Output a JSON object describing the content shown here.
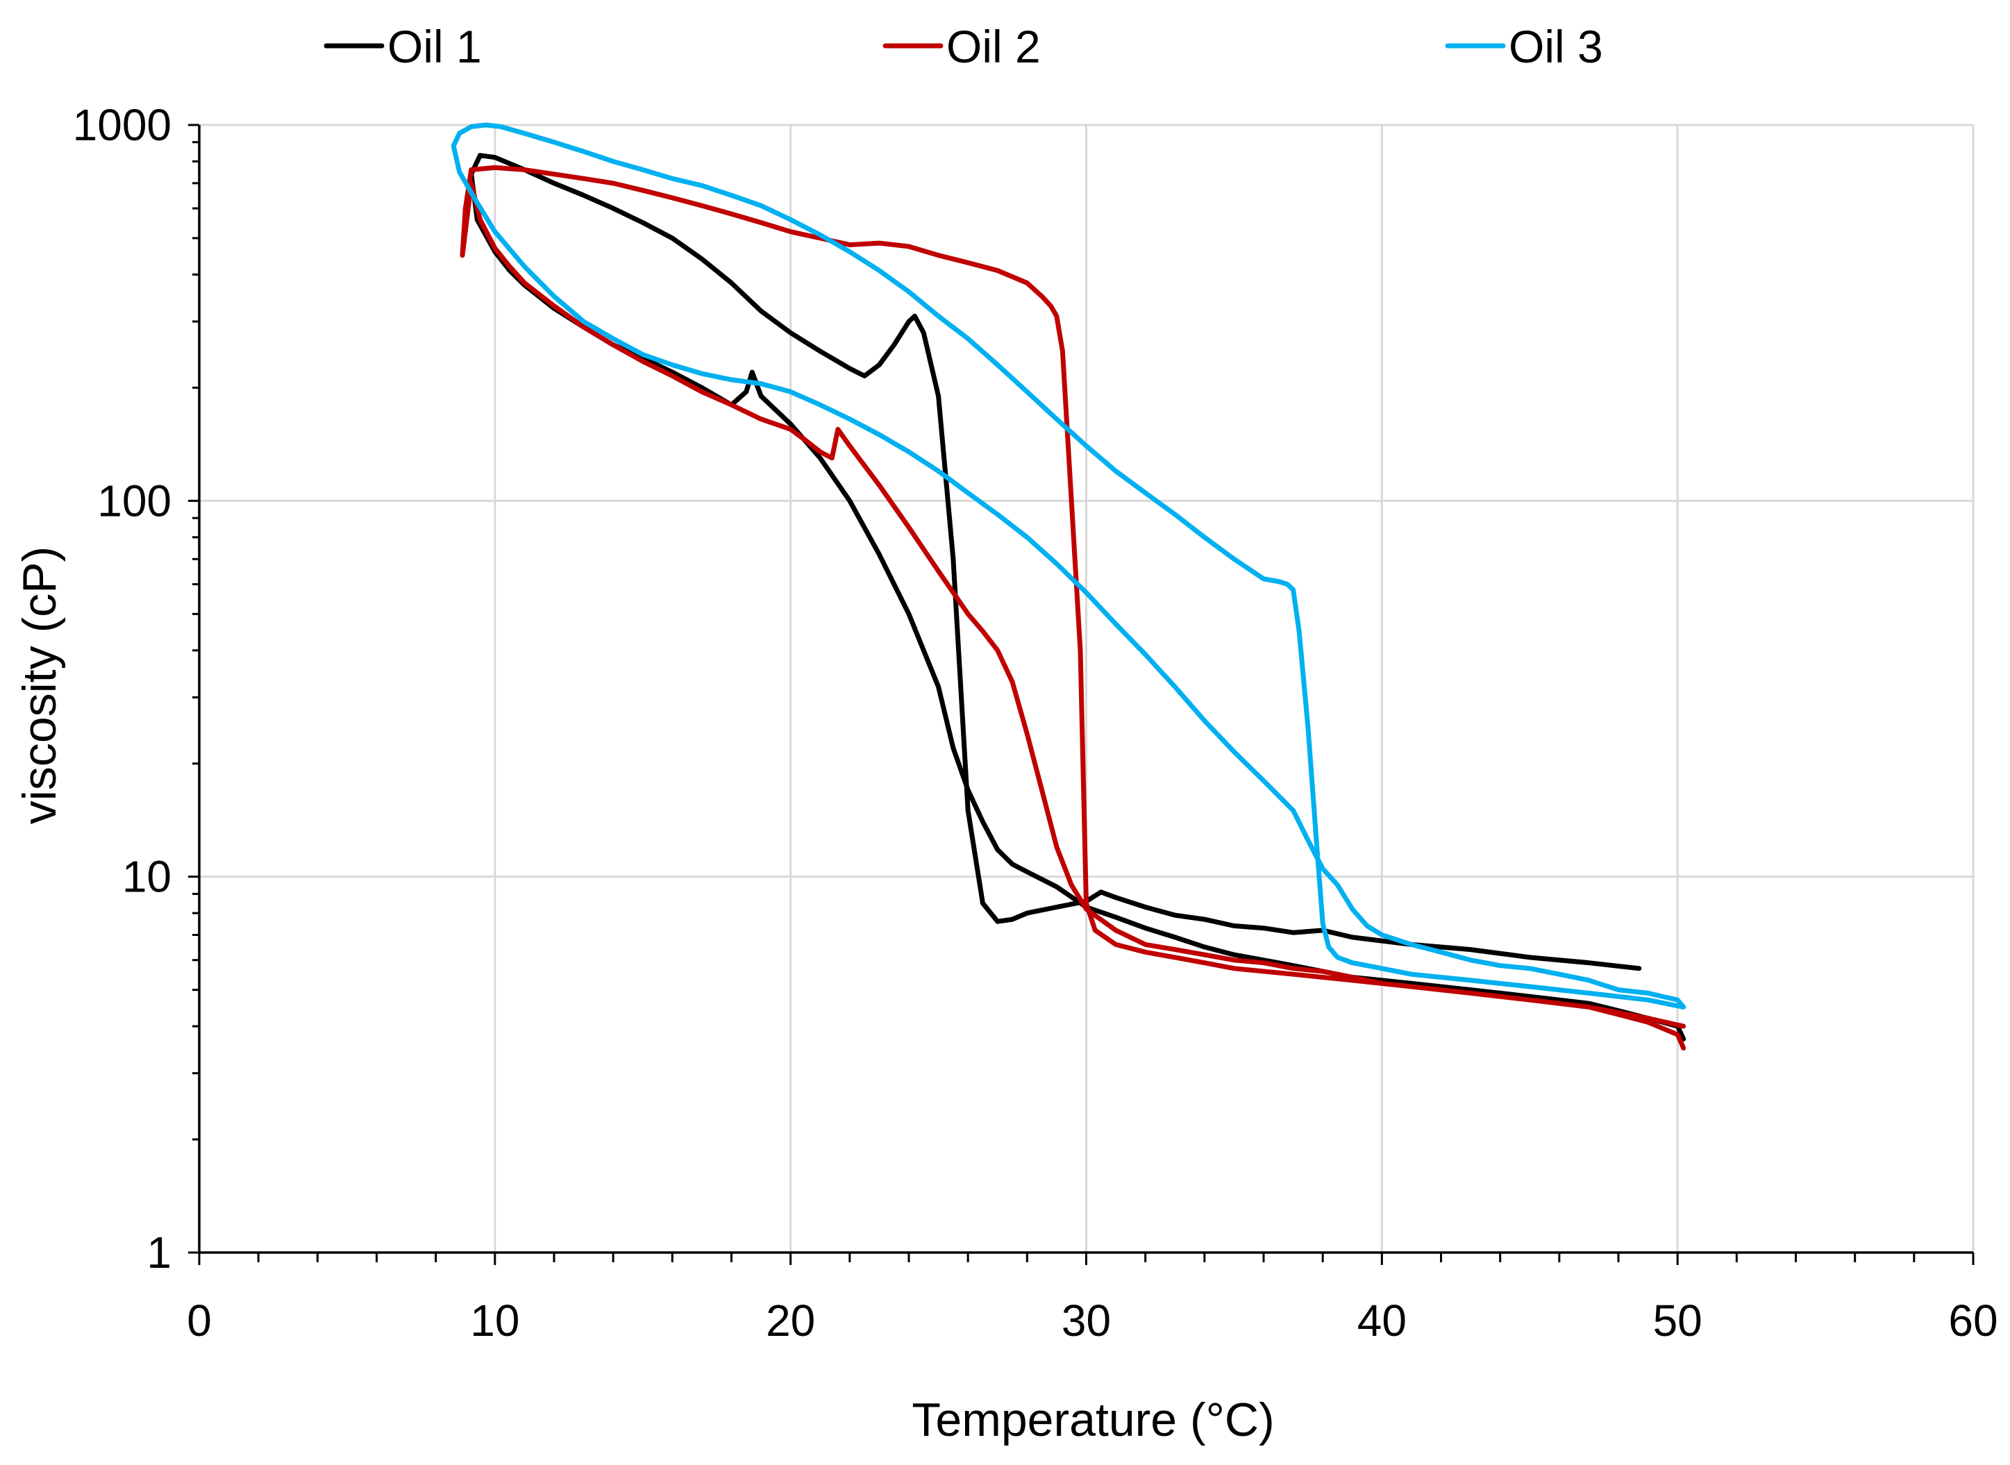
{
  "chart_data": {
    "type": "line",
    "title": "",
    "xlabel": "Temperature (°C)",
    "ylabel": "viscosity (cP)",
    "xlim": [
      0,
      60
    ],
    "ylim": [
      1,
      1000
    ],
    "yscale": "log",
    "x_ticks": [
      0,
      10,
      20,
      30,
      40,
      50,
      60
    ],
    "x_tick_labels": [
      "0",
      "10",
      "20",
      "30",
      "40",
      "50",
      "60"
    ],
    "x_minor_step": 2,
    "y_ticks": [
      1,
      10,
      100,
      1000
    ],
    "y_tick_labels": [
      "1",
      "10",
      "100",
      "1000"
    ],
    "y_minor_ticks": [
      2,
      3,
      4,
      5,
      6,
      7,
      8,
      9,
      20,
      30,
      40,
      50,
      60,
      70,
      80,
      90,
      200,
      300,
      400,
      500,
      600,
      700,
      800,
      900
    ],
    "grid": true,
    "legend_position": "top",
    "series": [
      {
        "name": "Oil 1",
        "color": "#000000",
        "x": [
          48.7,
          47,
          45,
          43,
          41,
          39,
          38,
          37,
          36,
          35,
          34,
          33,
          32,
          31,
          30.5,
          30,
          29,
          28,
          27.5,
          27,
          26.5,
          26,
          25.5,
          25,
          24.5,
          24.2,
          24,
          23.5,
          23,
          22.5,
          22,
          21,
          20,
          19,
          18,
          17,
          16,
          15,
          14,
          13,
          12,
          11,
          10,
          9.5,
          9.2,
          9.4,
          10,
          10.5,
          11,
          12,
          13,
          14,
          15,
          16,
          17,
          18,
          18.5,
          18.7,
          19,
          20,
          21,
          22,
          23,
          24,
          25,
          25.5,
          26,
          26.5,
          27,
          27.5,
          28,
          29,
          30,
          31,
          32,
          33,
          34,
          35,
          36,
          37,
          38,
          39,
          40,
          41,
          42,
          43,
          44,
          45,
          46,
          47,
          48,
          49,
          50,
          50.2
        ],
        "y": [
          5.7,
          5.9,
          6.1,
          6.4,
          6.6,
          6.9,
          7.2,
          7.1,
          7.3,
          7.4,
          7.7,
          7.9,
          8.3,
          8.8,
          9.1,
          8.6,
          8.3,
          8.0,
          7.7,
          7.6,
          8.5,
          15,
          70,
          190,
          280,
          310,
          300,
          260,
          230,
          215,
          225,
          250,
          280,
          320,
          380,
          440,
          500,
          550,
          600,
          650,
          700,
          760,
          820,
          830,
          740,
          560,
          460,
          410,
          375,
          325,
          290,
          260,
          240,
          220,
          200,
          180,
          195,
          220,
          190,
          160,
          130,
          100,
          72,
          50,
          32,
          22,
          17,
          14,
          11.8,
          10.8,
          10.3,
          9.4,
          8.3,
          7.8,
          7.3,
          6.9,
          6.5,
          6.2,
          6.0,
          5.8,
          5.6,
          5.4,
          5.3,
          5.2,
          5.1,
          5.0,
          4.9,
          4.8,
          4.7,
          4.6,
          4.4,
          4.2,
          4.0,
          3.7
        ]
      },
      {
        "name": "Oil 2",
        "color": "#c00000",
        "x": [
          50.2,
          49,
          47,
          45,
          43,
          41,
          39,
          37,
          35,
          34,
          33,
          32,
          31,
          30.3,
          30,
          29.8,
          29.5,
          29.2,
          29.0,
          28.8,
          28.5,
          28,
          27,
          26,
          25,
          24,
          23,
          22,
          21,
          20,
          19,
          18,
          17,
          16,
          15,
          14,
          13,
          12,
          11,
          10,
          9.2,
          9.0,
          8.9,
          9.2,
          9.5,
          10,
          10.5,
          11,
          12,
          13,
          14,
          15,
          16,
          17,
          18,
          19,
          20,
          20.5,
          21,
          21.4,
          21.6,
          22,
          23,
          24,
          25,
          26,
          26.5,
          27,
          27.5,
          28,
          28.5,
          29,
          29.5,
          30,
          31,
          32,
          33,
          34,
          35,
          36,
          37,
          38,
          39,
          40,
          41,
          42,
          43,
          44,
          45,
          46,
          47,
          48,
          49,
          50,
          50.2
        ],
        "y": [
          4.0,
          4.2,
          4.5,
          4.7,
          4.9,
          5.1,
          5.3,
          5.5,
          5.7,
          5.9,
          6.1,
          6.3,
          6.6,
          7.2,
          8.5,
          40,
          100,
          250,
          310,
          330,
          350,
          380,
          410,
          430,
          450,
          475,
          485,
          480,
          500,
          520,
          550,
          580,
          610,
          640,
          670,
          700,
          720,
          740,
          760,
          770,
          760,
          600,
          450,
          700,
          560,
          470,
          420,
          380,
          330,
          290,
          260,
          235,
          215,
          195,
          180,
          165,
          155,
          145,
          135,
          130,
          155,
          140,
          110,
          85,
          65,
          50,
          45,
          40,
          33,
          24,
          17,
          12,
          9.5,
          8.2,
          7.2,
          6.6,
          6.4,
          6.2,
          6.0,
          5.9,
          5.7,
          5.6,
          5.4,
          5.2,
          5.1,
          5.0,
          4.9,
          4.8,
          4.7,
          4.6,
          4.5,
          4.3,
          4.1,
          3.8,
          3.5
        ]
      },
      {
        "name": "Oil 3",
        "color": "#00b0f0",
        "x": [
          50.2,
          49,
          47,
          45,
          43,
          41,
          40,
          39,
          38.5,
          38.2,
          38.0,
          37.8,
          37.5,
          37.2,
          37.0,
          36.8,
          36.5,
          36,
          35,
          34,
          33,
          32,
          31,
          30,
          29,
          28,
          27,
          26,
          25,
          24,
          23,
          22,
          21,
          20,
          19,
          18,
          17,
          16,
          15,
          14,
          13,
          12,
          11,
          10.2,
          9.7,
          9.2,
          8.8,
          8.6,
          8.8,
          9.3,
          10,
          11,
          12,
          13,
          14,
          15,
          16,
          17,
          18,
          19,
          20,
          21,
          22,
          23,
          24,
          25,
          26,
          27,
          28,
          29,
          30,
          31,
          32,
          33,
          34,
          35,
          36,
          37,
          37.5,
          38,
          38.5,
          39,
          39.5,
          40,
          41,
          42,
          43,
          44,
          45,
          46,
          47,
          48,
          49,
          50,
          50.2
        ],
        "y": [
          4.5,
          4.7,
          4.9,
          5.1,
          5.3,
          5.5,
          5.7,
          5.9,
          6.1,
          6.5,
          7.5,
          12,
          25,
          45,
          58,
          60,
          61,
          62,
          70,
          80,
          92,
          105,
          120,
          140,
          165,
          195,
          230,
          270,
          310,
          360,
          410,
          460,
          510,
          560,
          610,
          650,
          690,
          720,
          760,
          800,
          850,
          900,
          950,
          990,
          1000,
          990,
          950,
          880,
          750,
          640,
          520,
          420,
          350,
          300,
          270,
          245,
          230,
          218,
          210,
          205,
          195,
          180,
          165,
          150,
          135,
          120,
          105,
          92,
          80,
          68,
          57,
          47,
          39,
          32,
          26,
          21.5,
          18,
          15,
          12.5,
          10.5,
          9.5,
          8.2,
          7.4,
          7.0,
          6.6,
          6.3,
          6.0,
          5.8,
          5.7,
          5.5,
          5.3,
          5.0,
          4.9,
          4.7,
          4.5
        ]
      }
    ]
  }
}
